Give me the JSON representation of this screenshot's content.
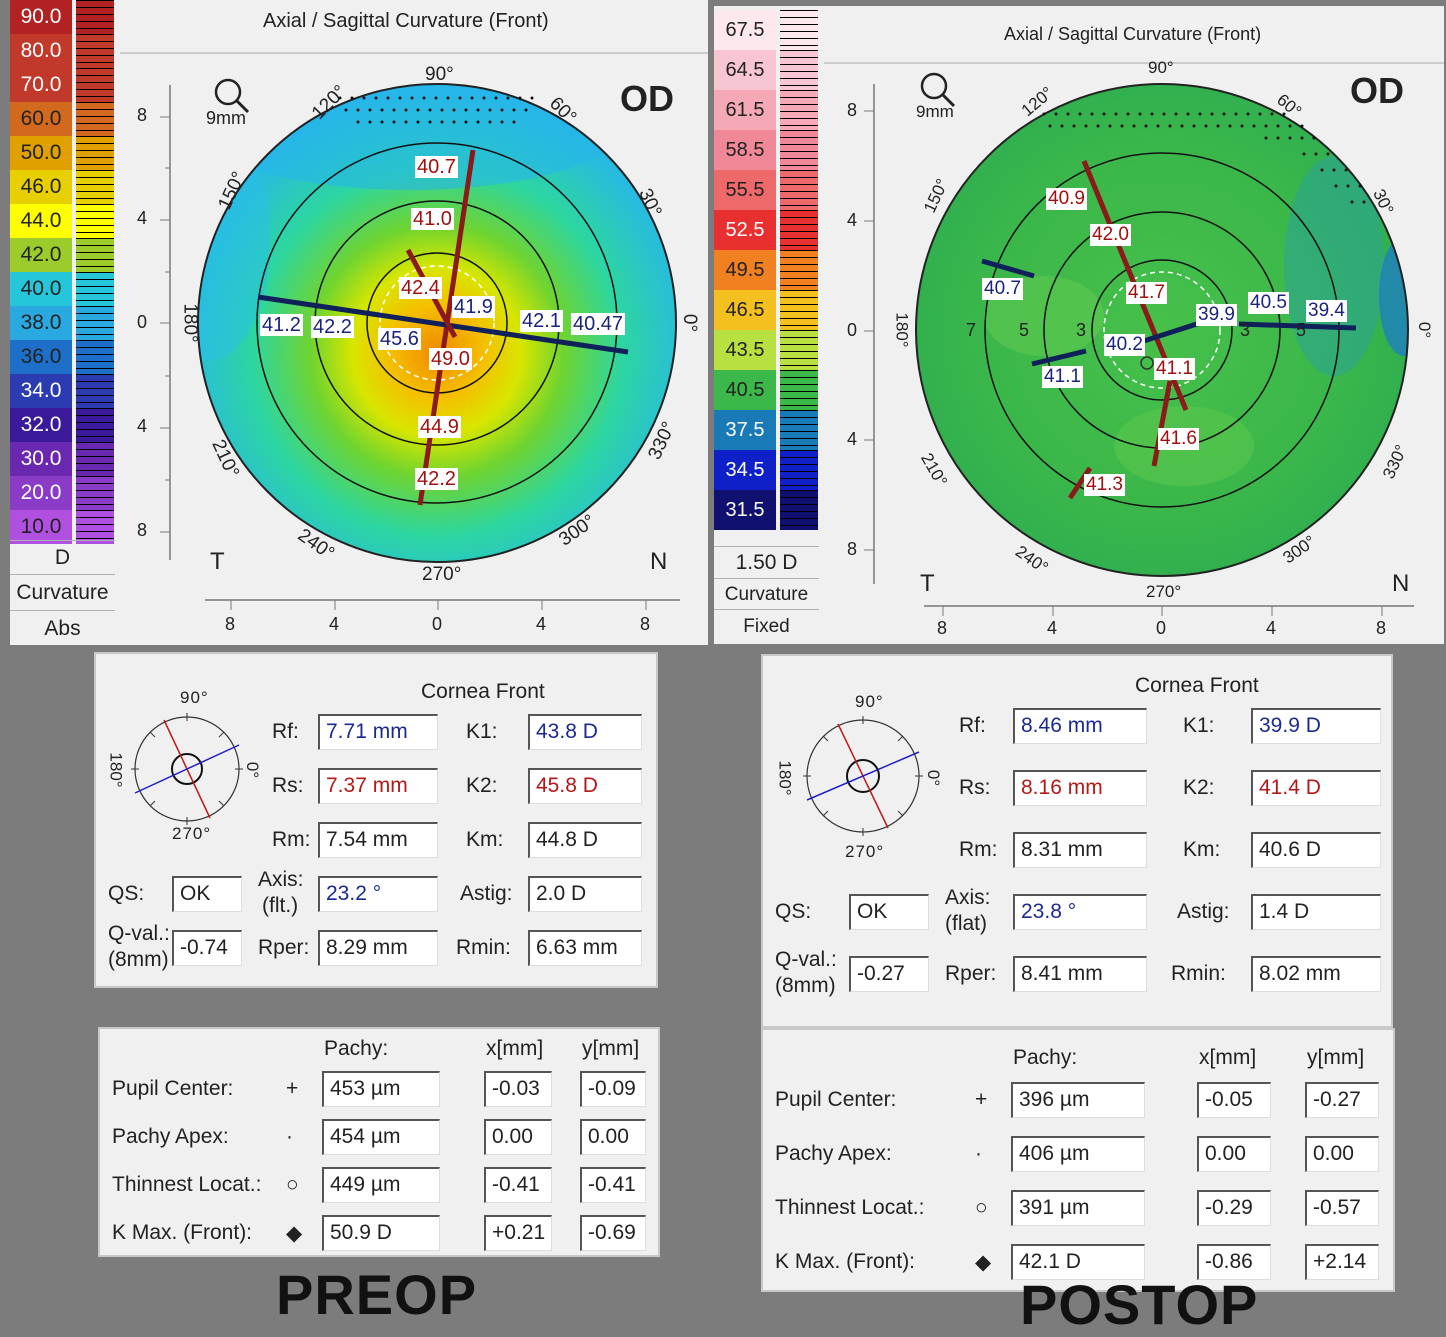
{
  "preop": {
    "scale": {
      "values": [
        "90.0",
        "80.0",
        "70.0",
        "60.0",
        "50.0",
        "46.0",
        "44.0",
        "42.0",
        "40.0",
        "38.0",
        "36.0",
        "34.0",
        "32.0",
        "30.0",
        "20.0",
        "10.0"
      ],
      "colors": [
        "#b22222",
        "#c0392b",
        "#c0392b",
        "#d2691e",
        "#e0a000",
        "#e8d000",
        "#ffff00",
        "#9ccc2c",
        "#26c6da",
        "#29a9e0",
        "#1e6fc9",
        "#2a3cb0",
        "#3a1a9a",
        "#6a28b0",
        "#8a3cc8",
        "#b050e0"
      ],
      "unit": "D",
      "mode": "Curvature",
      "type": "Abs"
    },
    "map": {
      "title": "Axial / Sagittal Curvature (Front)",
      "eye": "OD",
      "zoom": "9mm",
      "left_label": "T",
      "right_label": "N",
      "y_ticks": [
        "8",
        "4",
        "0",
        "4",
        "8"
      ],
      "x_ticks": [
        "8",
        "4",
        "0",
        "4",
        "8"
      ],
      "angles": {
        "a90": "90°",
        "a120": "120°",
        "a60": "60°",
        "a150": "150°",
        "a30": "30°",
        "a180": "180°",
        "a0": "0°",
        "a210": "210°",
        "a330": "330°",
        "a240": "240°",
        "a300": "300°",
        "a270": "270°"
      },
      "values": {
        "v1": "40.7",
        "v2": "41.0",
        "v3": "42.4",
        "v4": "41.9",
        "v5": "41.2",
        "v6": "42.2",
        "v7": "45.6",
        "v8": "49.0",
        "v9": "42.1",
        "v10": "40.47",
        "v11": "44.9",
        "v12": "42.2"
      }
    },
    "cornea": {
      "title": "Cornea Front",
      "dial": {
        "top": "90°",
        "bottom": "270°",
        "left": "180°",
        "right": "0°"
      },
      "rf_label": "Rf:",
      "rf": "7.71 mm",
      "rs_label": "Rs:",
      "rs": "7.37 mm",
      "rm_label": "Rm:",
      "rm": "7.54 mm",
      "k1_label": "K1:",
      "k1": "43.8 D",
      "k2_label": "K2:",
      "k2": "45.8 D",
      "km_label": "Km:",
      "km": "44.8 D",
      "qs_label": "QS:",
      "qs": "OK",
      "axis_label": "Axis:",
      "axis_sub": "(flt.)",
      "axis": "23.2 °",
      "astig_label": "Astig:",
      "astig": "2.0 D",
      "qval_label": "Q-val.:",
      "qval_sub": "(8mm)",
      "qval": "-0.74",
      "rper_label": "Rper:",
      "rper": "8.29 mm",
      "rmin_label": "Rmin:",
      "rmin": "6.63 mm"
    },
    "pachy": {
      "header_pachy": "Pachy:",
      "header_x": "x[mm]",
      "header_y": "y[mm]",
      "rows": [
        {
          "label": "Pupil Center:",
          "symbol": "+",
          "pachy": "453 µm",
          "x": "-0.03",
          "y": "-0.09"
        },
        {
          "label": "Pachy Apex:",
          "symbol": "·",
          "pachy": "454 µm",
          "x": "0.00",
          "y": "0.00"
        },
        {
          "label": "Thinnest Locat.:",
          "symbol": "○",
          "pachy": "449 µm",
          "x": "-0.41",
          "y": "-0.41"
        },
        {
          "label": "K Max. (Front):",
          "symbol": "◆",
          "pachy": "50.9 D",
          "x": "+0.21",
          "y": "-0.69"
        }
      ]
    },
    "caption": "PREOP"
  },
  "postop": {
    "scale": {
      "values": [
        "67.5",
        "64.5",
        "61.5",
        "58.5",
        "55.5",
        "52.5",
        "49.5",
        "46.5",
        "43.5",
        "40.5",
        "37.5",
        "34.5",
        "31.5"
      ],
      "colors": [
        "#fde8ee",
        "#f8c6d2",
        "#f5a8b6",
        "#f08898",
        "#ee6a6a",
        "#e83030",
        "#f08020",
        "#f4c020",
        "#b8e040",
        "#3cb84a",
        "#1a7ab8",
        "#1020c8",
        "#101070"
      ],
      "step": "1.50 D",
      "mode": "Curvature",
      "type": "Fixed"
    },
    "map": {
      "title": "Axial / Sagittal Curvature (Front)",
      "eye": "OD",
      "zoom": "9mm",
      "left_label": "T",
      "right_label": "N",
      "y_ticks": [
        "8",
        "4",
        "0",
        "4",
        "8"
      ],
      "x_ticks": [
        "8",
        "4",
        "0",
        "4",
        "8"
      ],
      "angles": {
        "a90": "90°",
        "a120": "120°",
        "a60": "60°",
        "a150": "150°",
        "a30": "30°",
        "a180": "180°",
        "a0": "0°",
        "a210": "210°",
        "a330": "330°",
        "a240": "240°",
        "a300": "300°",
        "a270": "270°"
      },
      "rings": [
        "7",
        "5",
        "3",
        "3",
        "5"
      ],
      "values": {
        "v1": "40.9",
        "v2": "42.0",
        "v3": "40.7",
        "v4": "41.7",
        "v5": "39.9",
        "v6": "40.5",
        "v7": "39.4",
        "v8": "40.2",
        "v9": "41.1",
        "v10": "41.1",
        "v11": "41.6",
        "v12": "41.3"
      }
    },
    "cornea": {
      "title": "Cornea Front",
      "dial": {
        "top": "90°",
        "bottom": "270°",
        "left": "180°",
        "right": "0°"
      },
      "rf_label": "Rf:",
      "rf": "8.46 mm",
      "rs_label": "Rs:",
      "rs": "8.16 mm",
      "rm_label": "Rm:",
      "rm": "8.31 mm",
      "k1_label": "K1:",
      "k1": "39.9 D",
      "k2_label": "K2:",
      "k2": "41.4 D",
      "km_label": "Km:",
      "km": "40.6 D",
      "qs_label": "QS:",
      "qs": "OK",
      "axis_label": "Axis:",
      "axis_sub": "(flat)",
      "axis": "23.8 °",
      "astig_label": "Astig:",
      "astig": "1.4 D",
      "qval_label": "Q-val.:",
      "qval_sub": "(8mm)",
      "qval": "-0.27",
      "rper_label": "Rper:",
      "rper": "8.41 mm",
      "rmin_label": "Rmin:",
      "rmin": "8.02 mm"
    },
    "pachy": {
      "header_pachy": "Pachy:",
      "header_x": "x[mm]",
      "header_y": "y[mm]",
      "rows": [
        {
          "label": "Pupil Center:",
          "symbol": "+",
          "pachy": "396 µm",
          "x": "-0.05",
          "y": "-0.27"
        },
        {
          "label": "Pachy Apex:",
          "symbol": "·",
          "pachy": "406 µm",
          "x": "0.00",
          "y": "0.00"
        },
        {
          "label": "Thinnest Locat.:",
          "symbol": "○",
          "pachy": "391 µm",
          "x": "-0.29",
          "y": "-0.57"
        },
        {
          "label": "K Max. (Front):",
          "symbol": "◆",
          "pachy": "42.1 D",
          "x": "-0.86",
          "y": "+2.14"
        }
      ]
    },
    "caption": "POSTOP"
  }
}
